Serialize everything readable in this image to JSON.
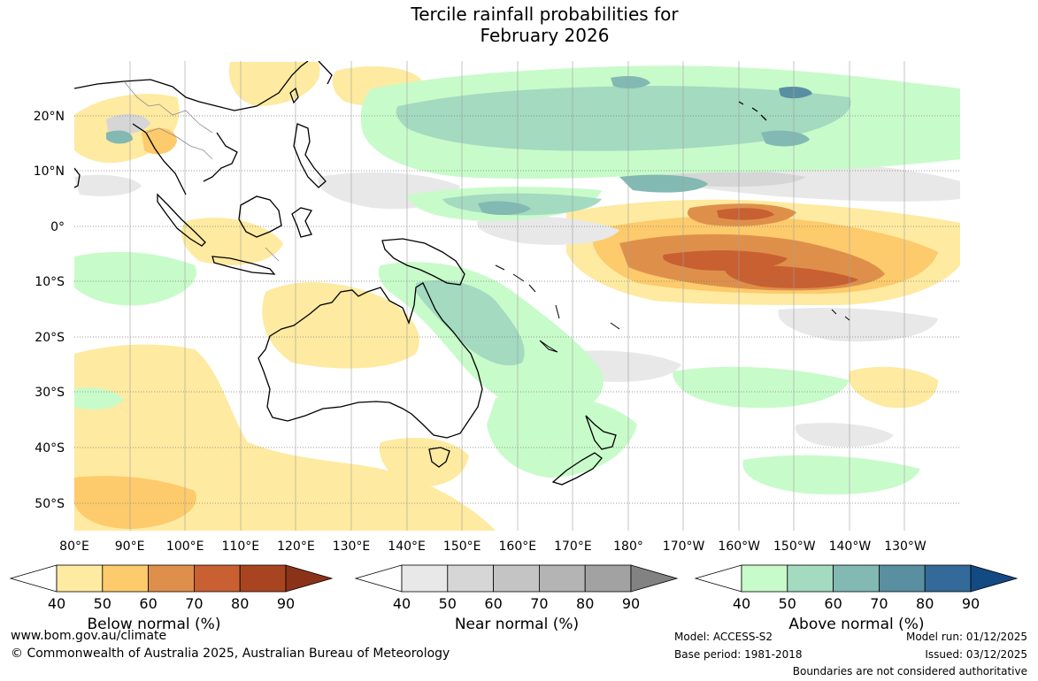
{
  "title": {
    "line1": "Tercile rainfall probabilities for",
    "line2": "February 2026"
  },
  "axes": {
    "lat_labels": [
      "20°N",
      "10°N",
      "0°",
      "10°S",
      "20°S",
      "30°S",
      "40°S",
      "50°S"
    ],
    "lon_labels": [
      "80°E",
      "90°E",
      "100°E",
      "110°E",
      "120°E",
      "130°E",
      "140°E",
      "150°E",
      "160°E",
      "170°E",
      "180°",
      "170°W",
      "160°W",
      "150°W",
      "140°W",
      "130°W"
    ]
  },
  "colorbars": [
    {
      "name": "below",
      "label": "Below normal (%)",
      "ticks": [
        "40",
        "50",
        "60",
        "70",
        "80",
        "90"
      ],
      "colors": [
        "#ffffff",
        "#feeaa0",
        "#fdca6c",
        "#de904a",
        "#c86032",
        "#a84520",
        "#8b3318"
      ]
    },
    {
      "name": "near",
      "label": "Near normal (%)",
      "ticks": [
        "40",
        "50",
        "60",
        "70",
        "80",
        "90"
      ],
      "colors": [
        "#ffffff",
        "#e8e8e8",
        "#d6d6d6",
        "#c4c4c4",
        "#b4b4b4",
        "#a2a2a2",
        "#828282"
      ]
    },
    {
      "name": "above",
      "label": "Above normal (%)",
      "ticks": [
        "40",
        "50",
        "60",
        "70",
        "80",
        "90"
      ],
      "colors": [
        "#ffffff",
        "#c8fbca",
        "#a3dac0",
        "#82b9b2",
        "#5a8fa2",
        "#336a9a",
        "#134a84"
      ]
    }
  ],
  "footer": {
    "website": "www.bom.gov.au/climate",
    "copyright": "© Commonwealth of Australia 2025, Australian Bureau of Meteorology",
    "model": "Model: ACCESS-S2",
    "base_period": "Base period: 1981-2018",
    "model_run": "Model run: 01/12/2025",
    "issued": "Issued: 03/12/2025",
    "boundaries": "Boundaries are not considered authoritative"
  }
}
